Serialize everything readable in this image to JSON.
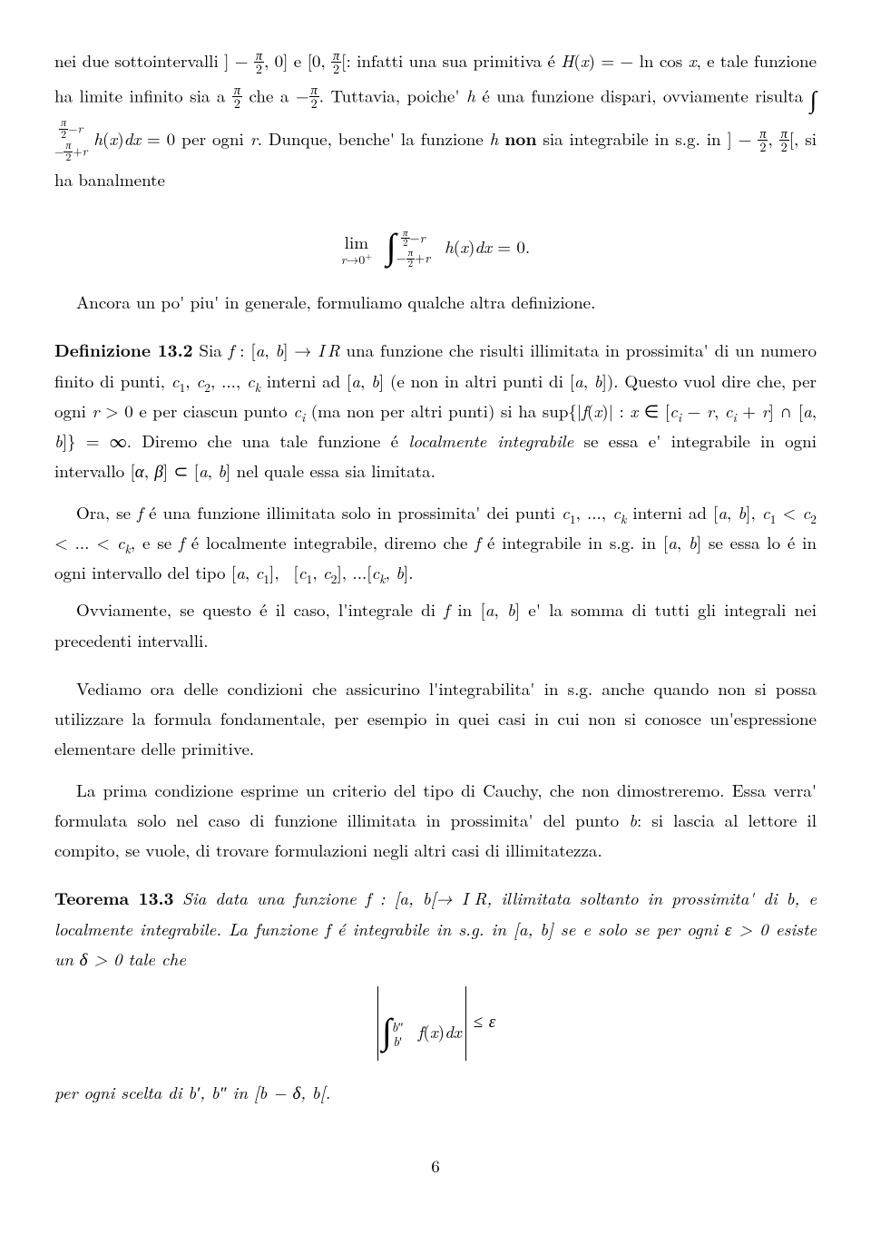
{
  "p1": "nei due sottointervalli ] − π/2, 0] e [0, π/2[: infatti una sua primitiva é H(x) = − ln cos x, e tale funzione ha limite infinito sia a π/2 che a −π/2. Tuttavia, poiche' h é una funzione dispari, ovviamente risulta ∫ da −π/2+r a π/2−r h(x)dx = 0 per ogni r. Dunque, benche' la funzione h non sia integrabile in s.g. in ] − π/2, π/2[, si ha banalmente",
  "p2": "Ancora un po' piu' in generale, formuliamo qualche altra definizione.",
  "def_label": "Definizione 13.2",
  "def_body": " Sia f : [a, b] → ℝ una funzione che risulti illimitata in prossimita' di un numero finito di punti, c₁, c₂, ..., cₖ interni ad [a, b] (e non in altri punti di [a, b]). Questo vuol dire che, per ogni r > 0 e per ciascun punto cᵢ (ma non per altri punti) si ha sup{|f(x)| : x ∈ [cᵢ − r, cᵢ + r] ∩ [a, b]} = ∞. Diremo che una tale funzione é localmente integrabile se essa e' integrabile in ogni intervallo [α, β] ⊂ [a, b] nel quale essa sia limitata.",
  "p3": "Ora, se f é una funzione illimitata solo in prossimita' dei punti c₁, ..., cₖ interni ad [a, b], c₁ < c₂ < ... < cₖ, e se f é localmente integrabile, diremo che f é integrabile in s.g. in [a, b] se essa lo é in ogni intervallo del tipo [a, c₁], [c₁, c₂], ...[cₖ, b].",
  "p4": "Ovviamente, se questo é il caso, l'integrale di f in [a, b] e' la somma di tutti gli integrali nei precedenti intervalli.",
  "p5": "Vediamo ora delle condizioni che assicurino l'integrabilita' in s.g. anche quando non si possa utilizzare la formula fondamentale, per esempio in quei casi in cui non si conosce un'espressione elementare delle primitive.",
  "p6": "La prima condizione esprime un criterio del tipo di Cauchy, che non dimostreremo. Essa verra' formulata solo nel caso di funzione illimitata in prossimita' del punto b: si lascia al lettore il compito, se vuole, di trovare formulazioni negli altri casi di illimitatezza.",
  "thm_label": "Teorema 13.3",
  "thm_body1": " Sia data una funzione f : [a, b[→ ℝ, illimitata soltanto in prossimita' di b, e localmente integrabile. La funzione f é integrabile in s.g. in [a, b] se e solo se per ogni ε > 0 esiste un δ > 0 tale che",
  "thm_body2": "per ogni scelta di b′, b″ in [b − δ, b[.",
  "page_number": "6",
  "math": {
    "eq1_lim": "lim",
    "eq1_under": "r→0⁺",
    "eq1_upper": "π/2 − r",
    "eq1_lower": "−π/2 + r",
    "eq1_int": "h(x)dx = 0.",
    "eq2_upper": "b″",
    "eq2_lower": "b′",
    "eq2_int": "f(x)dx",
    "eq2_rhs": " ≤ ε"
  }
}
